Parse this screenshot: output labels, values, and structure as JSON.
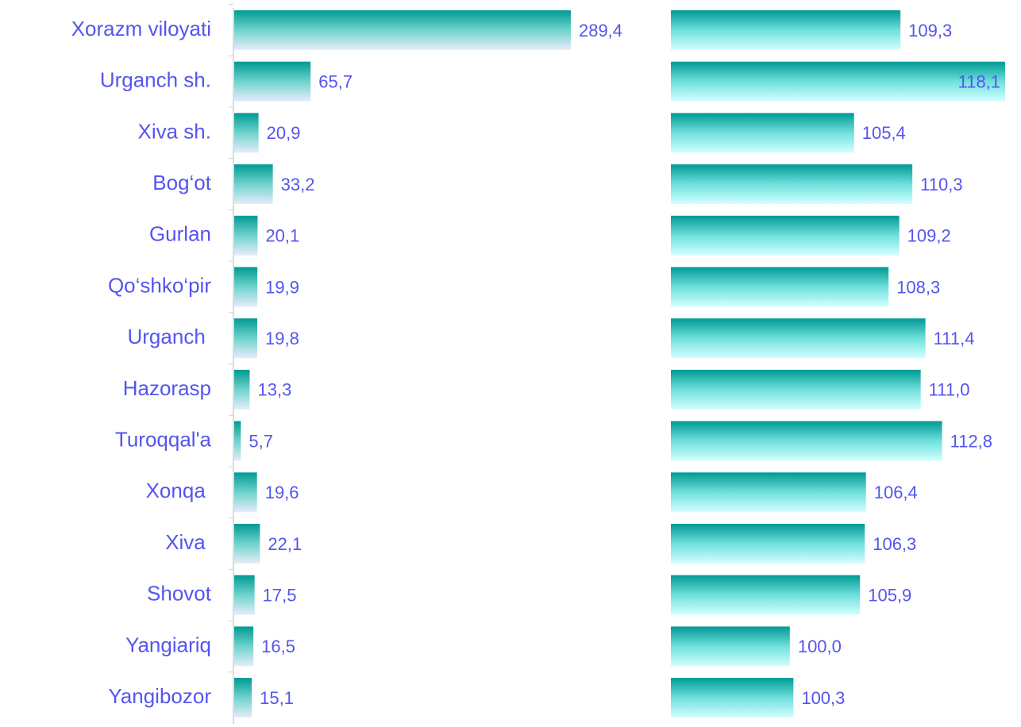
{
  "chart_data": {
    "type": "bar",
    "categories": [
      "Xorazm viloyati",
      "Urganch sh.",
      "Xiva sh.",
      "Bog‘ot",
      "Gurlan",
      "Qo‘shko‘pir",
      "Urganch ",
      "Hazorasp",
      "Turoqqal'a",
      "Xonqa ",
      "Xiva ",
      "Shovot",
      "Yangiariq",
      "Yangibozor"
    ],
    "series": [
      {
        "color": "#009a94",
        "xlim": [
          0,
          300
        ],
        "values": [
          289.4,
          65.7,
          20.9,
          33.2,
          20.1,
          19.9,
          19.8,
          13.3,
          5.7,
          19.6,
          22.1,
          17.5,
          16.5,
          15.1
        ],
        "value_labels": [
          "289,4",
          "65,7",
          "20,9",
          "33,2",
          "20,1",
          "19,9",
          "19,8",
          "13,3",
          "5,7",
          "19,6",
          "22,1",
          "17,5",
          "16,5",
          "15,1"
        ]
      },
      {
        "color": "#009a94",
        "xlim": [
          90,
          120
        ],
        "values": [
          109.3,
          118.1,
          105.4,
          110.3,
          109.2,
          108.3,
          111.4,
          111.0,
          112.8,
          106.4,
          106.3,
          105.9,
          100.0,
          100.3
        ],
        "value_labels": [
          "109,3",
          "118,1",
          "105,4",
          "110,3",
          "109,2",
          "108,3",
          "111,4",
          "111,0",
          "112,8",
          "106,4",
          "106,3",
          "105,9",
          "100,0",
          "100,3"
        ]
      }
    ]
  }
}
